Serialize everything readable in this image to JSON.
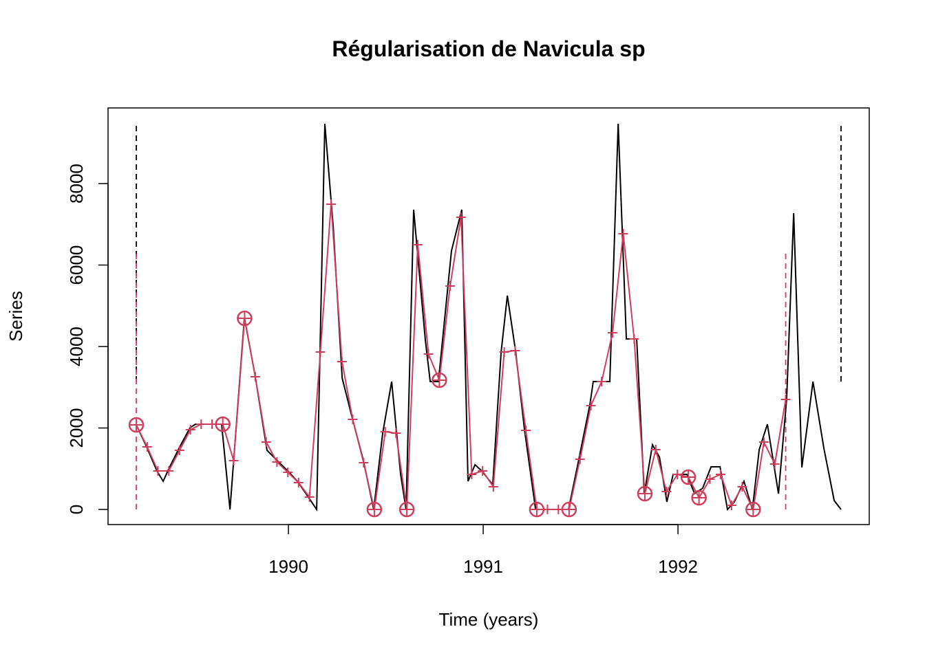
{
  "chart_data": {
    "type": "line",
    "title": "Régularisation de Navicula sp",
    "x_label": "Time (years)",
    "y_label": "Series",
    "xlim": [
      1989.074,
      1992.982
    ],
    "ylim": [
      -371,
      9857
    ],
    "xticks": [
      1990,
      1991,
      1992
    ],
    "yticks": [
      0,
      2000,
      4000,
      6000,
      8000
    ],
    "series": [
      {
        "color": "#000000",
        "x": [
          1989.219,
          1989.272,
          1989.325,
          1989.357,
          1989.389,
          1989.442,
          1989.495,
          1989.523,
          1989.657,
          1989.7,
          1989.774,
          1989.83,
          1989.89,
          1989.943,
          1989.997,
          1990.046,
          1990.095,
          1990.145,
          1990.187,
          1990.23,
          1990.276,
          1990.325,
          1990.385,
          1990.438,
          1990.484,
          1990.53,
          1990.576,
          1990.604,
          1990.643,
          1990.703,
          1990.728,
          1990.77,
          1990.837,
          1990.89,
          1990.922,
          1990.958,
          1990.993,
          1991.049,
          1991.092,
          1991.124,
          1991.166,
          1991.212,
          1991.269,
          1991.438,
          1991.491,
          1991.548,
          1991.565,
          1991.65,
          1991.693,
          1991.735,
          1991.788,
          1991.827,
          1991.869,
          1991.905,
          1991.943,
          1991.975,
          1992.046,
          1992.085,
          1992.127,
          1992.17,
          1992.216,
          1992.254,
          1992.29,
          1992.339,
          1992.382,
          1992.417,
          1992.459,
          1992.516,
          1992.558,
          1992.594,
          1992.636,
          1992.693,
          1992.749,
          1992.802,
          1992.837
        ],
        "values": [
          2076,
          1536,
          945,
          692,
          1030,
          1536,
          2008,
          2093,
          2093,
          0,
          4709,
          3257,
          1452,
          1198,
          945,
          692,
          354,
          0,
          9469,
          6937,
          3224,
          2295,
          1198,
          0,
          1873,
          3139,
          861,
          0,
          7359,
          4152,
          3139,
          3139,
          6346,
          7359,
          692,
          1097,
          945,
          608,
          3865,
          5249,
          3899,
          1958,
          0,
          0,
          1232,
          2582,
          3139,
          3139,
          9469,
          4186,
          4186,
          388,
          1587,
          1283,
          186,
          861,
          861,
          388,
          523,
          1046,
          1046,
          0,
          186,
          692,
          0,
          1468,
          2093,
          388,
          2717,
          7274,
          1030,
          3139,
          1502,
          219,
          0
        ]
      },
      {
        "color": "#d03d5c",
        "x": [
          1989.219,
          1989.275,
          1989.33,
          1989.386,
          1989.441,
          1989.497,
          1989.552,
          1989.608,
          1989.663,
          1989.719,
          1989.775,
          1989.83,
          1989.886,
          1989.941,
          1989.997,
          1990.052,
          1990.108,
          1990.164,
          1990.219,
          1990.275,
          1990.33,
          1990.386,
          1990.441,
          1990.497,
          1990.552,
          1990.608,
          1990.664,
          1990.719,
          1990.775,
          1990.83,
          1990.886,
          1990.941,
          1990.997,
          1991.052,
          1991.108,
          1991.164,
          1991.219,
          1991.275,
          1991.33,
          1991.386,
          1991.441,
          1991.497,
          1991.553,
          1991.608,
          1991.664,
          1991.719,
          1991.775,
          1991.83,
          1991.886,
          1991.941,
          1991.997,
          1992.053,
          1992.108,
          1992.164,
          1992.219,
          1992.275,
          1992.33,
          1992.386,
          1992.441,
          1992.497,
          1992.553
        ],
        "values": [
          2076,
          1536,
          945,
          945,
          1452,
          1958,
          2093,
          2093,
          2093,
          1198,
          4692,
          3257,
          1654,
          1165,
          911,
          658,
          304,
          3865,
          7494,
          3629,
          2211,
          1148,
          0,
          1907,
          1873,
          0,
          6498,
          3814,
          3173,
          5485,
          7173,
          861,
          945,
          557,
          3865,
          3899,
          1941,
          0,
          0,
          0,
          0,
          1232,
          2549,
          3139,
          4338,
          6768,
          4186,
          388,
          1468,
          439,
          861,
          793,
          287,
          743,
          861,
          101,
          557,
          0,
          1654,
          1114,
          2700
        ],
        "markers": [
          "circle",
          "plus",
          "plus",
          "plus",
          "plus",
          "plus",
          "plus",
          "plus",
          "circle",
          "plus",
          "circle",
          "plus",
          "plus",
          "plus",
          "plus",
          "plus",
          "plus",
          "plus",
          "plus",
          "plus",
          "plus",
          "plus",
          "circle",
          "plus",
          "plus",
          "circle",
          "plus",
          "plus",
          "circle",
          "plus",
          "plus",
          "plus",
          "plus",
          "plus",
          "plus",
          "plus",
          "plus",
          "circle",
          "plus",
          "plus",
          "circle",
          "plus",
          "plus",
          "plus",
          "plus",
          "plus",
          "plus",
          "circle",
          "plus",
          "plus",
          "plus",
          "circle",
          "circle",
          "plus",
          "plus",
          "plus",
          "plus",
          "circle",
          "plus",
          "plus",
          "plus"
        ]
      }
    ],
    "vlines": [
      {
        "x": 1989.219,
        "ymin": 3139,
        "ymax": 9469,
        "color": "#000000"
      },
      {
        "x": 1992.837,
        "ymin": 3139,
        "ymax": 9469,
        "color": "#000000"
      },
      {
        "x": 1989.219,
        "ymin": 0,
        "ymax": 6300,
        "color": "#d03d5c"
      },
      {
        "x": 1992.553,
        "ymin": 0,
        "ymax": 6300,
        "color": "#d03d5c"
      }
    ]
  }
}
